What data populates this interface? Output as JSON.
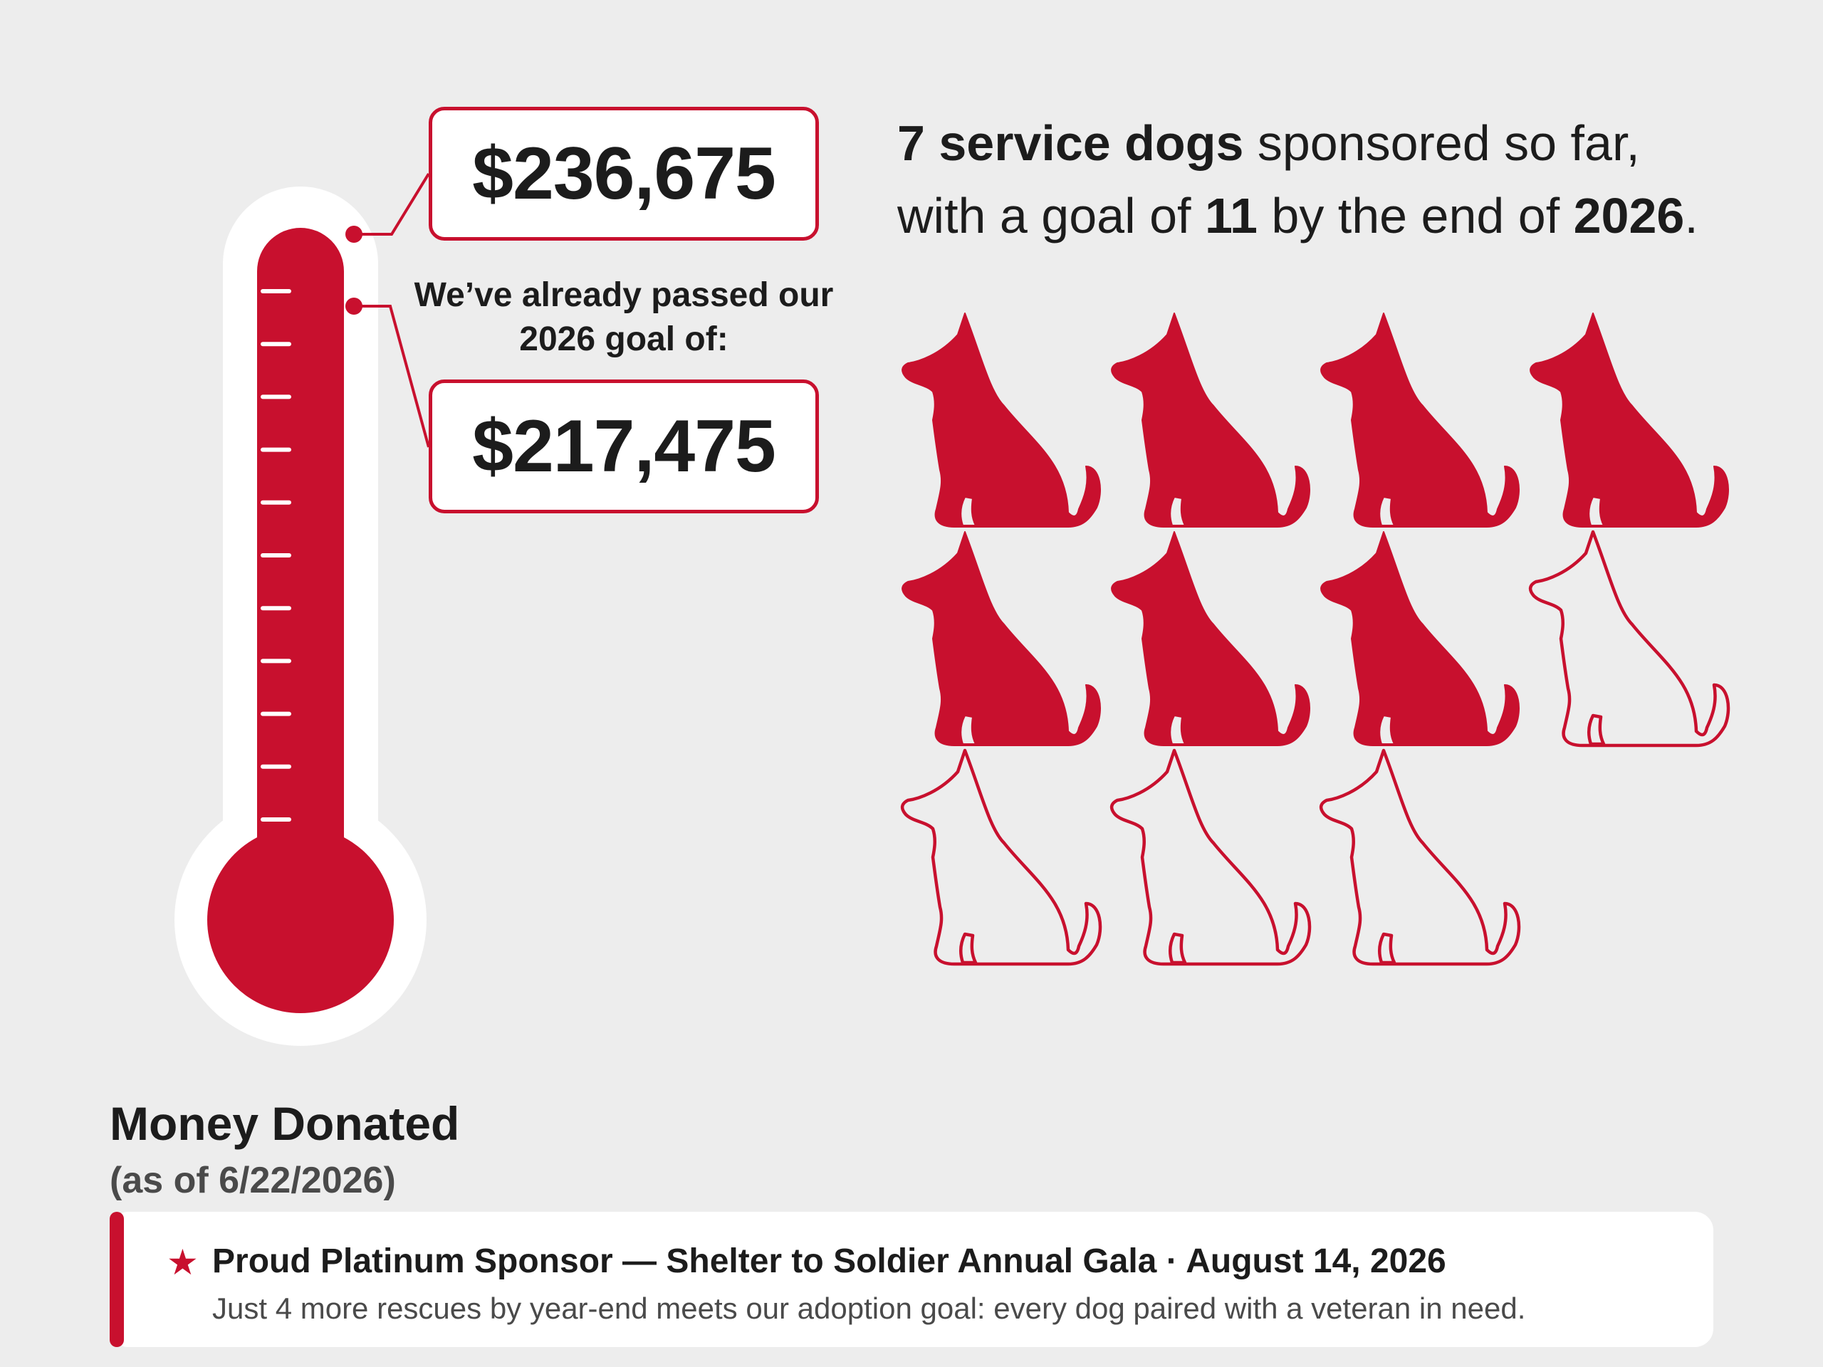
{
  "fundraiser": {
    "raised_label": "$236,675",
    "goal_intro": "We’ve already passed our 2026 goal of:",
    "goal_label": "$217,475",
    "caption_title": "Money Donated",
    "caption_date": "(as of 6/22/2026)"
  },
  "headline": {
    "count": "7 service dogs",
    "text_a": " sponsored so far,",
    "text_b": "with a goal of ",
    "goal": "11",
    "text_c": " by the end of ",
    "year": "2026",
    "text_d": "."
  },
  "banner": {
    "star_icon": "star-icon",
    "title": "Proud Platinum Sponsor — Shelter to Soldier Annual Gala · August 14, 2026",
    "subtitle": "Just 4 more rescues by year-end meets our adoption goal: every dog paired with a veteran in need."
  },
  "colors": {
    "accent": "#c8102e",
    "text": "#1c1c1c",
    "muted": "#4a4a4a",
    "background": "#ededed",
    "panel": "#ffffff"
  },
  "chart_data": [
    {
      "type": "thermometer",
      "value": 236675,
      "goal": 217475,
      "tick_count": 11
    },
    {
      "type": "pictogram",
      "unit": "dog",
      "sponsored": 7,
      "goal": 11,
      "columns": 4
    }
  ]
}
